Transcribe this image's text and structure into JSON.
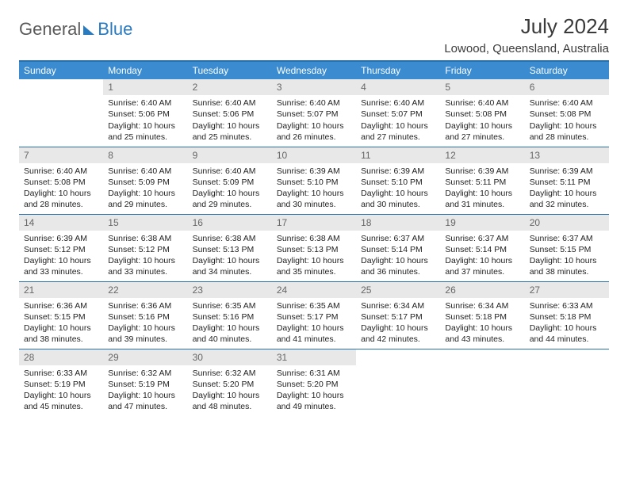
{
  "brand": {
    "part1": "General",
    "part2": "Blue"
  },
  "title": "July 2024",
  "location": "Lowood, Queensland, Australia",
  "colors": {
    "header_bg": "#3a8bd0",
    "header_text": "#ffffff",
    "rule": "#2a6fa8",
    "daynum_bg": "#e8e8e8",
    "daynum_text": "#666666",
    "body_text": "#222222",
    "brand_gray": "#5a5a5a",
    "brand_blue": "#2a7ac0"
  },
  "day_names": [
    "Sunday",
    "Monday",
    "Tuesday",
    "Wednesday",
    "Thursday",
    "Friday",
    "Saturday"
  ],
  "weeks": [
    [
      null,
      {
        "n": "1",
        "sr": "Sunrise: 6:40 AM",
        "ss": "Sunset: 5:06 PM",
        "d1": "Daylight: 10 hours",
        "d2": "and 25 minutes."
      },
      {
        "n": "2",
        "sr": "Sunrise: 6:40 AM",
        "ss": "Sunset: 5:06 PM",
        "d1": "Daylight: 10 hours",
        "d2": "and 25 minutes."
      },
      {
        "n": "3",
        "sr": "Sunrise: 6:40 AM",
        "ss": "Sunset: 5:07 PM",
        "d1": "Daylight: 10 hours",
        "d2": "and 26 minutes."
      },
      {
        "n": "4",
        "sr": "Sunrise: 6:40 AM",
        "ss": "Sunset: 5:07 PM",
        "d1": "Daylight: 10 hours",
        "d2": "and 27 minutes."
      },
      {
        "n": "5",
        "sr": "Sunrise: 6:40 AM",
        "ss": "Sunset: 5:08 PM",
        "d1": "Daylight: 10 hours",
        "d2": "and 27 minutes."
      },
      {
        "n": "6",
        "sr": "Sunrise: 6:40 AM",
        "ss": "Sunset: 5:08 PM",
        "d1": "Daylight: 10 hours",
        "d2": "and 28 minutes."
      }
    ],
    [
      {
        "n": "7",
        "sr": "Sunrise: 6:40 AM",
        "ss": "Sunset: 5:08 PM",
        "d1": "Daylight: 10 hours",
        "d2": "and 28 minutes."
      },
      {
        "n": "8",
        "sr": "Sunrise: 6:40 AM",
        "ss": "Sunset: 5:09 PM",
        "d1": "Daylight: 10 hours",
        "d2": "and 29 minutes."
      },
      {
        "n": "9",
        "sr": "Sunrise: 6:40 AM",
        "ss": "Sunset: 5:09 PM",
        "d1": "Daylight: 10 hours",
        "d2": "and 29 minutes."
      },
      {
        "n": "10",
        "sr": "Sunrise: 6:39 AM",
        "ss": "Sunset: 5:10 PM",
        "d1": "Daylight: 10 hours",
        "d2": "and 30 minutes."
      },
      {
        "n": "11",
        "sr": "Sunrise: 6:39 AM",
        "ss": "Sunset: 5:10 PM",
        "d1": "Daylight: 10 hours",
        "d2": "and 30 minutes."
      },
      {
        "n": "12",
        "sr": "Sunrise: 6:39 AM",
        "ss": "Sunset: 5:11 PM",
        "d1": "Daylight: 10 hours",
        "d2": "and 31 minutes."
      },
      {
        "n": "13",
        "sr": "Sunrise: 6:39 AM",
        "ss": "Sunset: 5:11 PM",
        "d1": "Daylight: 10 hours",
        "d2": "and 32 minutes."
      }
    ],
    [
      {
        "n": "14",
        "sr": "Sunrise: 6:39 AM",
        "ss": "Sunset: 5:12 PM",
        "d1": "Daylight: 10 hours",
        "d2": "and 33 minutes."
      },
      {
        "n": "15",
        "sr": "Sunrise: 6:38 AM",
        "ss": "Sunset: 5:12 PM",
        "d1": "Daylight: 10 hours",
        "d2": "and 33 minutes."
      },
      {
        "n": "16",
        "sr": "Sunrise: 6:38 AM",
        "ss": "Sunset: 5:13 PM",
        "d1": "Daylight: 10 hours",
        "d2": "and 34 minutes."
      },
      {
        "n": "17",
        "sr": "Sunrise: 6:38 AM",
        "ss": "Sunset: 5:13 PM",
        "d1": "Daylight: 10 hours",
        "d2": "and 35 minutes."
      },
      {
        "n": "18",
        "sr": "Sunrise: 6:37 AM",
        "ss": "Sunset: 5:14 PM",
        "d1": "Daylight: 10 hours",
        "d2": "and 36 minutes."
      },
      {
        "n": "19",
        "sr": "Sunrise: 6:37 AM",
        "ss": "Sunset: 5:14 PM",
        "d1": "Daylight: 10 hours",
        "d2": "and 37 minutes."
      },
      {
        "n": "20",
        "sr": "Sunrise: 6:37 AM",
        "ss": "Sunset: 5:15 PM",
        "d1": "Daylight: 10 hours",
        "d2": "and 38 minutes."
      }
    ],
    [
      {
        "n": "21",
        "sr": "Sunrise: 6:36 AM",
        "ss": "Sunset: 5:15 PM",
        "d1": "Daylight: 10 hours",
        "d2": "and 38 minutes."
      },
      {
        "n": "22",
        "sr": "Sunrise: 6:36 AM",
        "ss": "Sunset: 5:16 PM",
        "d1": "Daylight: 10 hours",
        "d2": "and 39 minutes."
      },
      {
        "n": "23",
        "sr": "Sunrise: 6:35 AM",
        "ss": "Sunset: 5:16 PM",
        "d1": "Daylight: 10 hours",
        "d2": "and 40 minutes."
      },
      {
        "n": "24",
        "sr": "Sunrise: 6:35 AM",
        "ss": "Sunset: 5:17 PM",
        "d1": "Daylight: 10 hours",
        "d2": "and 41 minutes."
      },
      {
        "n": "25",
        "sr": "Sunrise: 6:34 AM",
        "ss": "Sunset: 5:17 PM",
        "d1": "Daylight: 10 hours",
        "d2": "and 42 minutes."
      },
      {
        "n": "26",
        "sr": "Sunrise: 6:34 AM",
        "ss": "Sunset: 5:18 PM",
        "d1": "Daylight: 10 hours",
        "d2": "and 43 minutes."
      },
      {
        "n": "27",
        "sr": "Sunrise: 6:33 AM",
        "ss": "Sunset: 5:18 PM",
        "d1": "Daylight: 10 hours",
        "d2": "and 44 minutes."
      }
    ],
    [
      {
        "n": "28",
        "sr": "Sunrise: 6:33 AM",
        "ss": "Sunset: 5:19 PM",
        "d1": "Daylight: 10 hours",
        "d2": "and 45 minutes."
      },
      {
        "n": "29",
        "sr": "Sunrise: 6:32 AM",
        "ss": "Sunset: 5:19 PM",
        "d1": "Daylight: 10 hours",
        "d2": "and 47 minutes."
      },
      {
        "n": "30",
        "sr": "Sunrise: 6:32 AM",
        "ss": "Sunset: 5:20 PM",
        "d1": "Daylight: 10 hours",
        "d2": "and 48 minutes."
      },
      {
        "n": "31",
        "sr": "Sunrise: 6:31 AM",
        "ss": "Sunset: 5:20 PM",
        "d1": "Daylight: 10 hours",
        "d2": "and 49 minutes."
      },
      null,
      null,
      null
    ]
  ]
}
